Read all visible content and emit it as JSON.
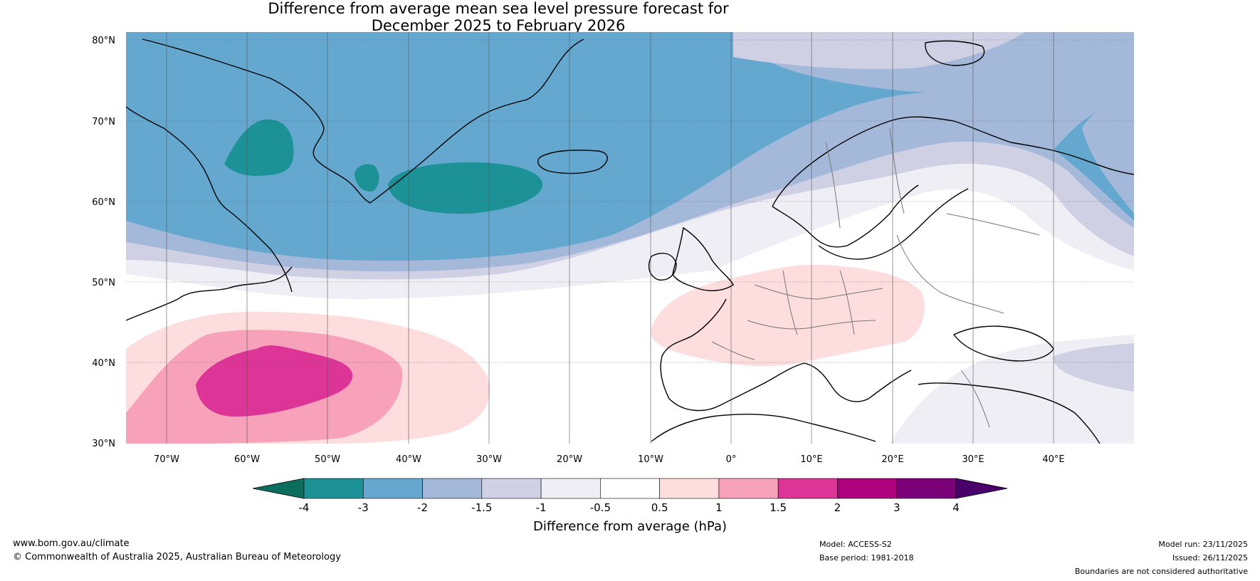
{
  "title": {
    "line1": "Difference from average mean sea level pressure forecast for",
    "line2": "December 2025 to February 2026"
  },
  "map": {
    "region": "North Atlantic and Europe",
    "lon_range": [
      -75,
      50
    ],
    "lat_range": [
      30,
      81
    ],
    "lat_labels": [
      "80°N",
      "70°N",
      "60°N",
      "50°N",
      "40°N",
      "30°N"
    ],
    "lon_labels": [
      "70°W",
      "60°W",
      "50°W",
      "40°W",
      "30°W",
      "20°W",
      "10°W",
      "0°",
      "10°E",
      "20°E",
      "30°E",
      "40°E"
    ]
  },
  "colorbar": {
    "title": "Difference from average (hPa)",
    "tick_labels": [
      "-4",
      "-3",
      "-2",
      "-1.5",
      "-1",
      "-0.5",
      "0.5",
      "1",
      "1.5",
      "2",
      "3",
      "4"
    ],
    "colors": [
      "#1d9296",
      "#64a8d0",
      "#a4b8da",
      "#cfd0e4",
      "#f0eef5",
      "#ffffff",
      "#fddddd",
      "#f7a1bb",
      "#dd3497",
      "#ae017e",
      "#7a0177"
    ],
    "under_color": "#0b6e5d",
    "over_color": "#49006a"
  },
  "footer": {
    "website": "www.bom.gov.au/climate",
    "copyright": "© Commonwealth of Australia 2025, Australian Bureau of Meteorology",
    "model": "Model: ACCESS-S2",
    "base_period": "Base period: 1981-2018",
    "model_run": "Model run: 23/11/2025",
    "issued": "Issued: 26/11/2025",
    "disclaimer": "Boundaries are not considered authoritative"
  }
}
